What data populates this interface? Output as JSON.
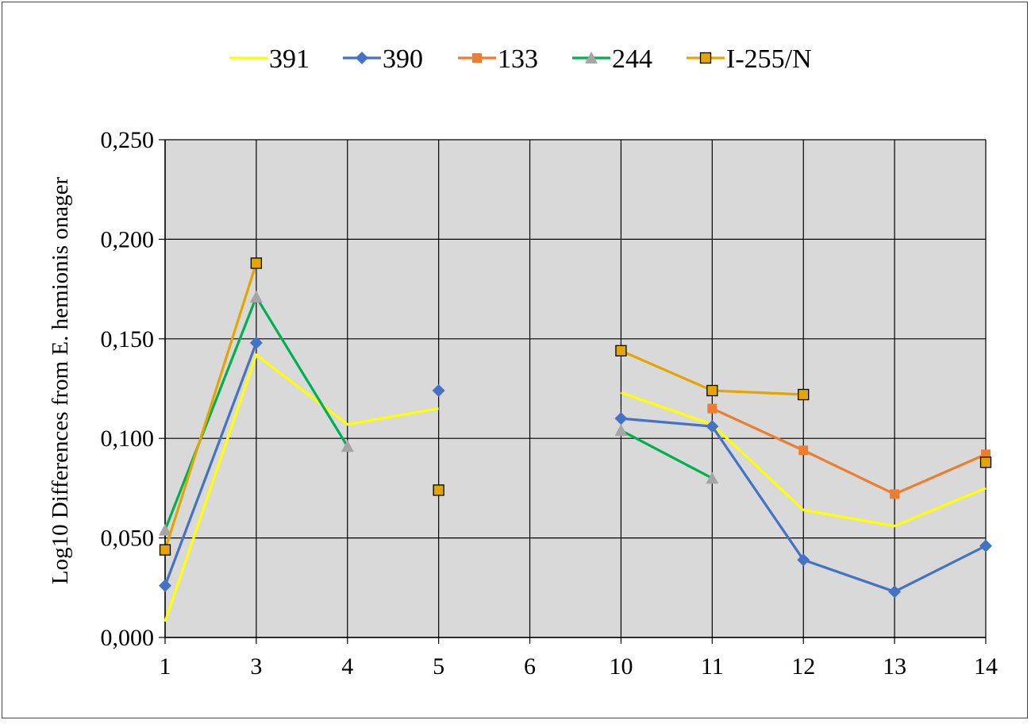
{
  "chart_data": {
    "type": "line",
    "title": "",
    "xlabel": "",
    "ylabel": "Log10 Differences from E. hemionis onager",
    "categories": [
      "1",
      "3",
      "4",
      "5",
      "6",
      "10",
      "11",
      "12",
      "13",
      "14"
    ],
    "ylim": [
      0,
      0.25
    ],
    "y_ticks": [
      "0,000",
      "0,050",
      "0,100",
      "0,150",
      "0,200",
      "0,250"
    ],
    "grid": true,
    "plot_background": "#d9d9d9",
    "legend_position": "top",
    "series": [
      {
        "name": "391",
        "color": "#ffff00",
        "marker": "none",
        "values": [
          0.008,
          0.142,
          0.107,
          0.115,
          null,
          0.123,
          0.107,
          0.064,
          0.056,
          0.075
        ]
      },
      {
        "name": "390",
        "color": "#4472c4",
        "marker": "diamond",
        "values": [
          0.026,
          0.148,
          null,
          0.124,
          null,
          0.11,
          0.106,
          0.039,
          0.023,
          0.046
        ]
      },
      {
        "name": "133",
        "color": "#ed7d31",
        "marker": "square",
        "values": [
          null,
          null,
          null,
          null,
          null,
          null,
          0.115,
          0.094,
          0.072,
          0.092
        ]
      },
      {
        "name": "244",
        "color": "#00b050",
        "marker_color": "#a5a5a5",
        "marker": "triangle",
        "values": [
          0.054,
          0.171,
          0.096,
          null,
          null,
          0.104,
          0.08,
          null,
          null,
          null
        ]
      },
      {
        "name": "I-255/N",
        "color": "#e3a600",
        "marker_color": "#e3a600",
        "marker": "square-outlined",
        "values": [
          0.044,
          0.188,
          null,
          0.074,
          null,
          0.144,
          0.124,
          0.122,
          null,
          0.088
        ]
      }
    ]
  }
}
